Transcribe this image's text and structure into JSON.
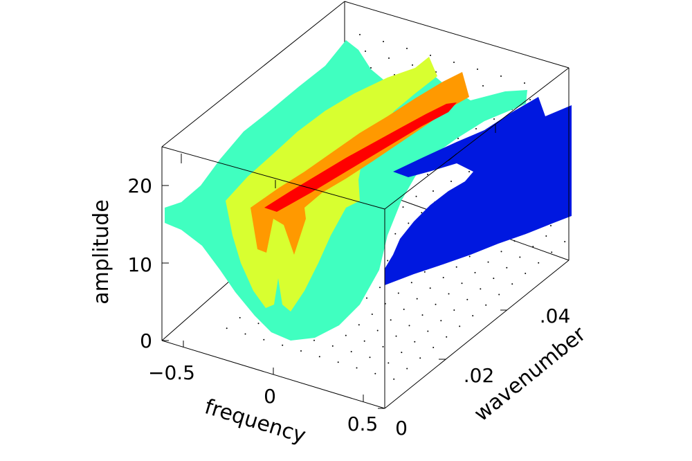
{
  "chart_data": {
    "type": "surface3d",
    "title": "",
    "xlabel": "frequency",
    "ylabel": "wavenumber",
    "zlabel": "amplitude",
    "xlim": [
      -0.6,
      0.6
    ],
    "ylim": [
      0,
      0.06
    ],
    "zlim": [
      0,
      24
    ],
    "x_ticks": [
      {
        "value": -0.5,
        "label": "−0.5"
      },
      {
        "value": 0,
        "label": "0"
      },
      {
        "value": 0.5,
        "label": "0.5"
      }
    ],
    "y_ticks": [
      {
        "value": 0,
        "label": "0"
      },
      {
        "value": 0.02,
        "label": ".02"
      },
      {
        "value": 0.04,
        "label": ".04"
      }
    ],
    "z_ticks": [
      {
        "value": 0,
        "label": "0"
      },
      {
        "value": 10,
        "label": "10"
      },
      {
        "value": 20,
        "label": "20"
      }
    ],
    "grid": false,
    "colormap": [
      "#0018e0",
      "#40ffc0",
      "#d8ff30",
      "#ff9900",
      "#ff0000"
    ]
  }
}
